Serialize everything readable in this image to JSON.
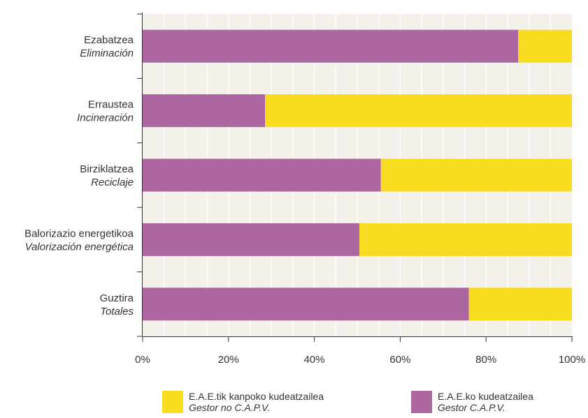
{
  "chart_data": {
    "type": "bar",
    "orientation": "horizontal",
    "stacked": true,
    "categories": [
      {
        "eu": "Ezabatzea",
        "es": "Eliminación"
      },
      {
        "eu": "Erraustea",
        "es": "Incineración"
      },
      {
        "eu": "Birziklatzea",
        "es": "Reciclaje"
      },
      {
        "eu": "Balorizazio energetikoa",
        "es": "Valorización energética"
      },
      {
        "eu": "Guztira",
        "es": "Totales"
      }
    ],
    "series": [
      {
        "name": "E.A.E.ko kudeatzailea",
        "name_es": "Gestor C.A.P.V.",
        "color": "#ac66a0",
        "values": [
          87.5,
          28.5,
          55.5,
          50.5,
          76
        ]
      },
      {
        "name": "E.A.E.tik kanpoko kudeatzailea",
        "name_es": "Gestor no C.A.P.V.",
        "color": "#f7dc1f",
        "values": [
          12.5,
          71.5,
          44.5,
          49.5,
          24
        ]
      }
    ],
    "xticks": [
      "0%",
      "20%",
      "40%",
      "60%",
      "80%",
      "100%"
    ],
    "xlim": [
      0,
      100
    ],
    "grid": true,
    "legend_position": "bottom",
    "plot_background": "#f3f1ea"
  },
  "legend": [
    {
      "label": "E.A.E.tik kanpoko kudeatzailea",
      "label_es": "Gestor no C.A.P.V.",
      "color": "#f7dc1f"
    },
    {
      "label": "E.A.E.ko kudeatzailea",
      "label_es": "Gestor C.A.P.V.",
      "color": "#ac66a0"
    }
  ]
}
